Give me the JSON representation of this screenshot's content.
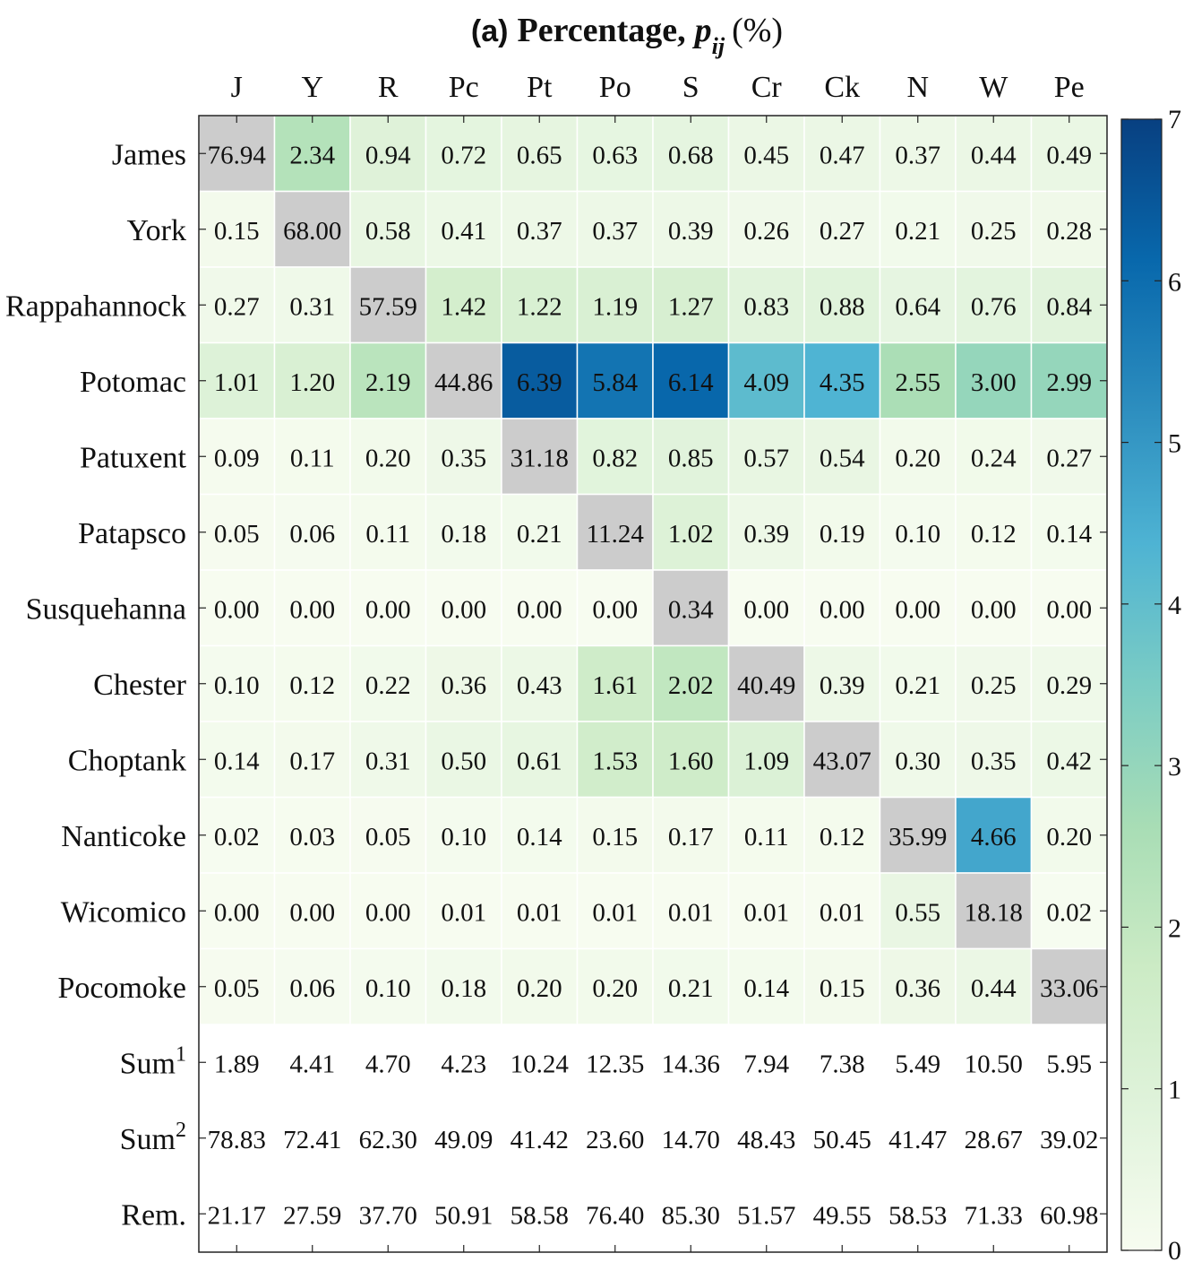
{
  "chart_data": {
    "type": "heatmap",
    "title": {
      "panel": "(a)",
      "text": "Percentage,",
      "symbol": "p",
      "subscript": "ij",
      "unit": "(%)"
    },
    "columns": [
      "J",
      "Y",
      "R",
      "Pc",
      "Pt",
      "Po",
      "S",
      "Cr",
      "Ck",
      "N",
      "W",
      "Pe"
    ],
    "rows": [
      "James",
      "York",
      "Rappahannock",
      "Potomac",
      "Patuxent",
      "Patapsco",
      "Susquehanna",
      "Chester",
      "Choptank",
      "Nanticoke",
      "Wicomico",
      "Pocomoke"
    ],
    "values": [
      [
        "76.94",
        "2.34",
        "0.94",
        "0.72",
        "0.65",
        "0.63",
        "0.68",
        "0.45",
        "0.47",
        "0.37",
        "0.44",
        "0.49"
      ],
      [
        "0.15",
        "68.00",
        "0.58",
        "0.41",
        "0.37",
        "0.37",
        "0.39",
        "0.26",
        "0.27",
        "0.21",
        "0.25",
        "0.28"
      ],
      [
        "0.27",
        "0.31",
        "57.59",
        "1.42",
        "1.22",
        "1.19",
        "1.27",
        "0.83",
        "0.88",
        "0.64",
        "0.76",
        "0.84"
      ],
      [
        "1.01",
        "1.20",
        "2.19",
        "44.86",
        "6.39",
        "5.84",
        "6.14",
        "4.09",
        "4.35",
        "2.55",
        "3.00",
        "2.99"
      ],
      [
        "0.09",
        "0.11",
        "0.20",
        "0.35",
        "31.18",
        "0.82",
        "0.85",
        "0.57",
        "0.54",
        "0.20",
        "0.24",
        "0.27"
      ],
      [
        "0.05",
        "0.06",
        "0.11",
        "0.18",
        "0.21",
        "11.24",
        "1.02",
        "0.39",
        "0.19",
        "0.10",
        "0.12",
        "0.14"
      ],
      [
        "0.00",
        "0.00",
        "0.00",
        "0.00",
        "0.00",
        "0.00",
        "0.34",
        "0.00",
        "0.00",
        "0.00",
        "0.00",
        "0.00"
      ],
      [
        "0.10",
        "0.12",
        "0.22",
        "0.36",
        "0.43",
        "1.61",
        "2.02",
        "40.49",
        "0.39",
        "0.21",
        "0.25",
        "0.29"
      ],
      [
        "0.14",
        "0.17",
        "0.31",
        "0.50",
        "0.61",
        "1.53",
        "1.60",
        "1.09",
        "43.07",
        "0.30",
        "0.35",
        "0.42"
      ],
      [
        "0.02",
        "0.03",
        "0.05",
        "0.10",
        "0.14",
        "0.15",
        "0.17",
        "0.11",
        "0.12",
        "35.99",
        "4.66",
        "0.20"
      ],
      [
        "0.00",
        "0.00",
        "0.00",
        "0.01",
        "0.01",
        "0.01",
        "0.01",
        "0.01",
        "0.01",
        "0.55",
        "18.18",
        "0.02"
      ],
      [
        "0.05",
        "0.06",
        "0.10",
        "0.18",
        "0.20",
        "0.20",
        "0.21",
        "0.14",
        "0.15",
        "0.36",
        "0.44",
        "33.06"
      ]
    ],
    "summary_rows": [
      {
        "label": "Sum",
        "superscript": "1",
        "values": [
          "1.89",
          "4.41",
          "4.70",
          "4.23",
          "10.24",
          "12.35",
          "14.36",
          "7.94",
          "7.38",
          "5.49",
          "10.50",
          "5.95"
        ]
      },
      {
        "label": "Sum",
        "superscript": "2",
        "values": [
          "78.83",
          "72.41",
          "62.30",
          "49.09",
          "41.42",
          "23.60",
          "14.70",
          "48.43",
          "50.45",
          "41.47",
          "28.67",
          "39.02"
        ]
      },
      {
        "label": "Rem.",
        "superscript": "",
        "values": [
          "21.17",
          "27.59",
          "37.70",
          "50.91",
          "58.58",
          "76.40",
          "85.30",
          "51.57",
          "49.55",
          "58.53",
          "71.33",
          "60.98"
        ]
      }
    ],
    "colorbar": {
      "min": 0,
      "max": 7,
      "ticks": [
        "0",
        "1",
        "2",
        "3",
        "4",
        "5",
        "6",
        "7"
      ],
      "colorscale": [
        "#f7fcf0",
        "#e0f3db",
        "#ccebc5",
        "#a8ddb5",
        "#7bccc4",
        "#4eb3d3",
        "#2b8cbe",
        "#0868ac",
        "#084081"
      ]
    },
    "diagonal_color": "#cccccc"
  }
}
